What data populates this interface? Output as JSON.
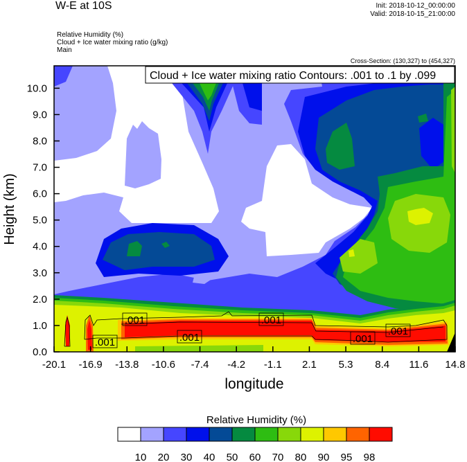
{
  "header": {
    "title": "W-E at 10S",
    "init": "Init: 2018-10-12_00:00:00",
    "valid": "Valid: 2018-10-15_21:00:00",
    "fields": [
      "Relative Humidity   (%)",
      "Cloud + Ice water mixing ratio   (g/kg)",
      "Main"
    ],
    "cross_section": "Cross-Section: (130,327) to (454,327)"
  },
  "chart_data": {
    "type": "heatmap",
    "subtype": "filled contour cross-section with line contour overlay",
    "contour_info": "Cloud + Ice water mixing ratio Contours: .001 to .1 by .099",
    "contour_labels": [
      ".001",
      ".001",
      ".001",
      ".001",
      ".001",
      ".001"
    ],
    "xlabel": "longitude",
    "ylabel": "Height (km)",
    "xlim": [
      -20.1,
      14.8
    ],
    "ylim": [
      0,
      10.85
    ],
    "x_ticks": [
      "-20.1",
      "-16.9",
      "-13.8",
      "-10.6",
      "-7.4",
      "-4.2",
      "-1.1",
      "2.1",
      "5.3",
      "8.4",
      "11.6",
      "14.8"
    ],
    "y_ticks": [
      "0.0",
      "1.0",
      "2.0",
      "3.0",
      "4.0",
      "5.0",
      "6.0",
      "7.0",
      "8.0",
      "9.0",
      "10.0"
    ],
    "grid": false,
    "colorbar": {
      "title": "Relative Humidity  (%)",
      "placement": "bottom",
      "levels": [
        "10",
        "20",
        "30",
        "40",
        "50",
        "60",
        "70",
        "80",
        "90",
        "95",
        "98"
      ],
      "colors": [
        "#ffffff",
        "#a3a3ff",
        "#4646ff",
        "#0010eb",
        "#044a96",
        "#058a40",
        "#2ebd12",
        "#88d80a",
        "#ddf200",
        "#ffc800",
        "#ff6400",
        "#ff0c00"
      ]
    }
  }
}
